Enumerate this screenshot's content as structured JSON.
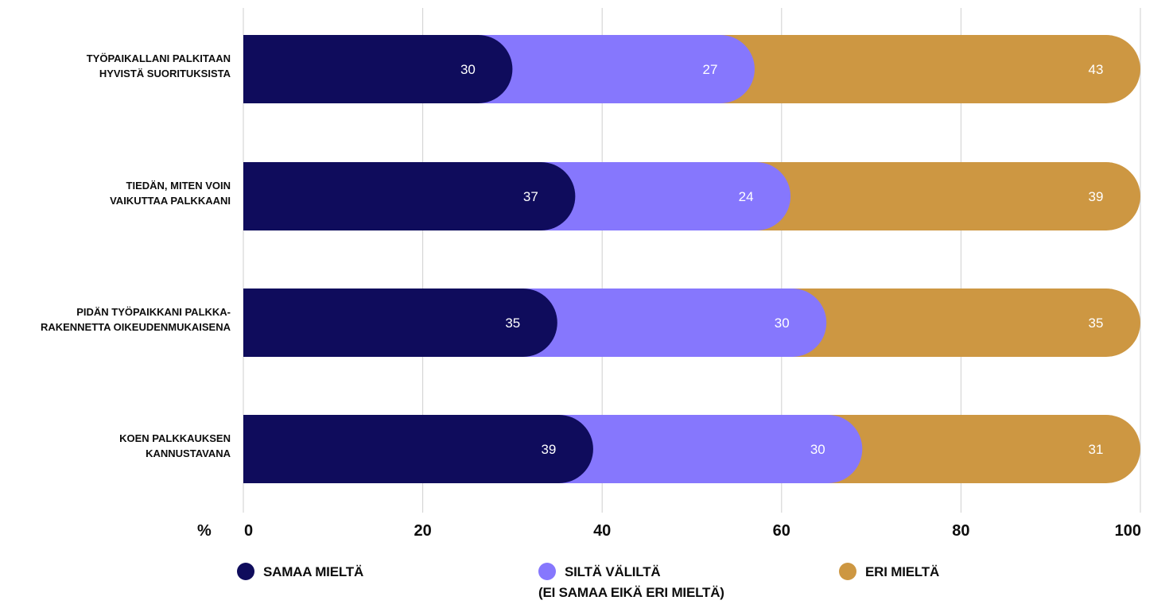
{
  "chart_data": {
    "type": "bar",
    "orientation": "horizontal",
    "stacked": true,
    "categories": [
      [
        "TYÖPAIKALLANI PALKITAAN",
        "HYVISTÄ SUORITUKSISTA"
      ],
      [
        "TIEDÄN, MITEN VOIN",
        "VAIKUTTAA PALKKAANI"
      ],
      [
        "PIDÄN TYÖPAIKKANI PALKKA-",
        "RAKENNETTA OIKEUDENMUKAISENA"
      ],
      [
        "KOEN PALKKAUKSEN",
        "KANNUSTAVANA"
      ]
    ],
    "series": [
      {
        "name": "SAMAA MIELTÄ",
        "color": "#0f0c5c",
        "values": [
          30,
          37,
          35,
          39
        ]
      },
      {
        "name": "SILTÄ VÄLILTÄ",
        "name_line2": "(EI SAMAA EIKÄ ERI MIELTÄ)",
        "color": "#8677fd",
        "values": [
          27,
          24,
          30,
          30
        ]
      },
      {
        "name": "ERI MIELTÄ",
        "color": "#cd9742",
        "values": [
          43,
          39,
          35,
          31
        ]
      }
    ],
    "x_unit_label": "%",
    "xlim": [
      0,
      100
    ],
    "xticks": [
      0,
      20,
      40,
      60,
      80,
      100
    ],
    "grid": true,
    "legend_position": "bottom"
  }
}
